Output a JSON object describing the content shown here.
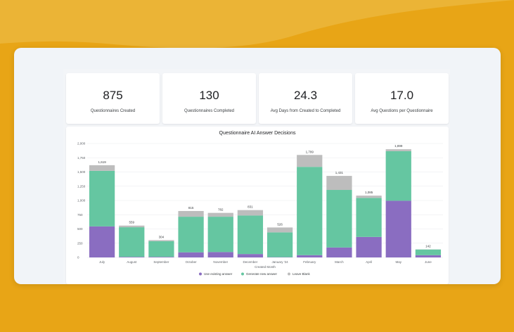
{
  "kpis": [
    {
      "value": "875",
      "label": "Questionnaires Created"
    },
    {
      "value": "130",
      "label": "Questionnaires Completed"
    },
    {
      "value": "24.3",
      "label": "Avg Days from Created to Completed"
    },
    {
      "value": "17.0",
      "label": "Avg Questions per Questionnaire"
    }
  ],
  "colors": {
    "background": "#e8a516",
    "use_existing": "#8a6dc1",
    "generate_new": "#65c6a1",
    "leave_blank": "#bdbdbd"
  },
  "chart_data": {
    "type": "bar",
    "stacked": true,
    "title": "Questionnaire AI Answer Decisions",
    "xlabel": "Created Month",
    "ylabel": "",
    "ylim": [
      0,
      2000
    ],
    "yticks": [
      0,
      250,
      500,
      750,
      1000,
      1250,
      1500,
      1750,
      2000
    ],
    "ytick_labels": [
      "0",
      "250",
      "500",
      "750",
      "1,000",
      "1,250",
      "1,500",
      "1,750",
      "2,000"
    ],
    "grid": true,
    "legend_position": "bottom",
    "categories": [
      "July",
      "August",
      "September",
      "October",
      "November",
      "December",
      "January '24",
      "February",
      "March",
      "April",
      "May",
      "June"
    ],
    "series": [
      {
        "name": "Use existing answer",
        "color": "#8a6dc1",
        "values": [
          545,
          10,
          10,
          90,
          95,
          60,
          5,
          40,
          175,
          360,
          995,
          40
        ]
      },
      {
        "name": "Generate new answer",
        "color": "#65c6a1",
        "values": [
          975,
          520,
          275,
          625,
          620,
          675,
          435,
          1550,
          1010,
          685,
          870,
          100
        ]
      },
      {
        "name": "Leave Blank",
        "color": "#bdbdbd",
        "values": [
          99,
          29,
          19,
          100,
          67,
          96,
          86,
          209,
          246,
          40,
          34,
          2
        ]
      }
    ],
    "totals": [
      1619,
      559,
      304,
      815,
      782,
      831,
      526,
      1799,
      1431,
      1085,
      1899,
      142
    ],
    "total_labels": [
      "1,619",
      "559",
      "304",
      "815",
      "782",
      "831",
      "526",
      "1,799",
      "1,431",
      "1,085",
      "1,899",
      "142"
    ]
  }
}
